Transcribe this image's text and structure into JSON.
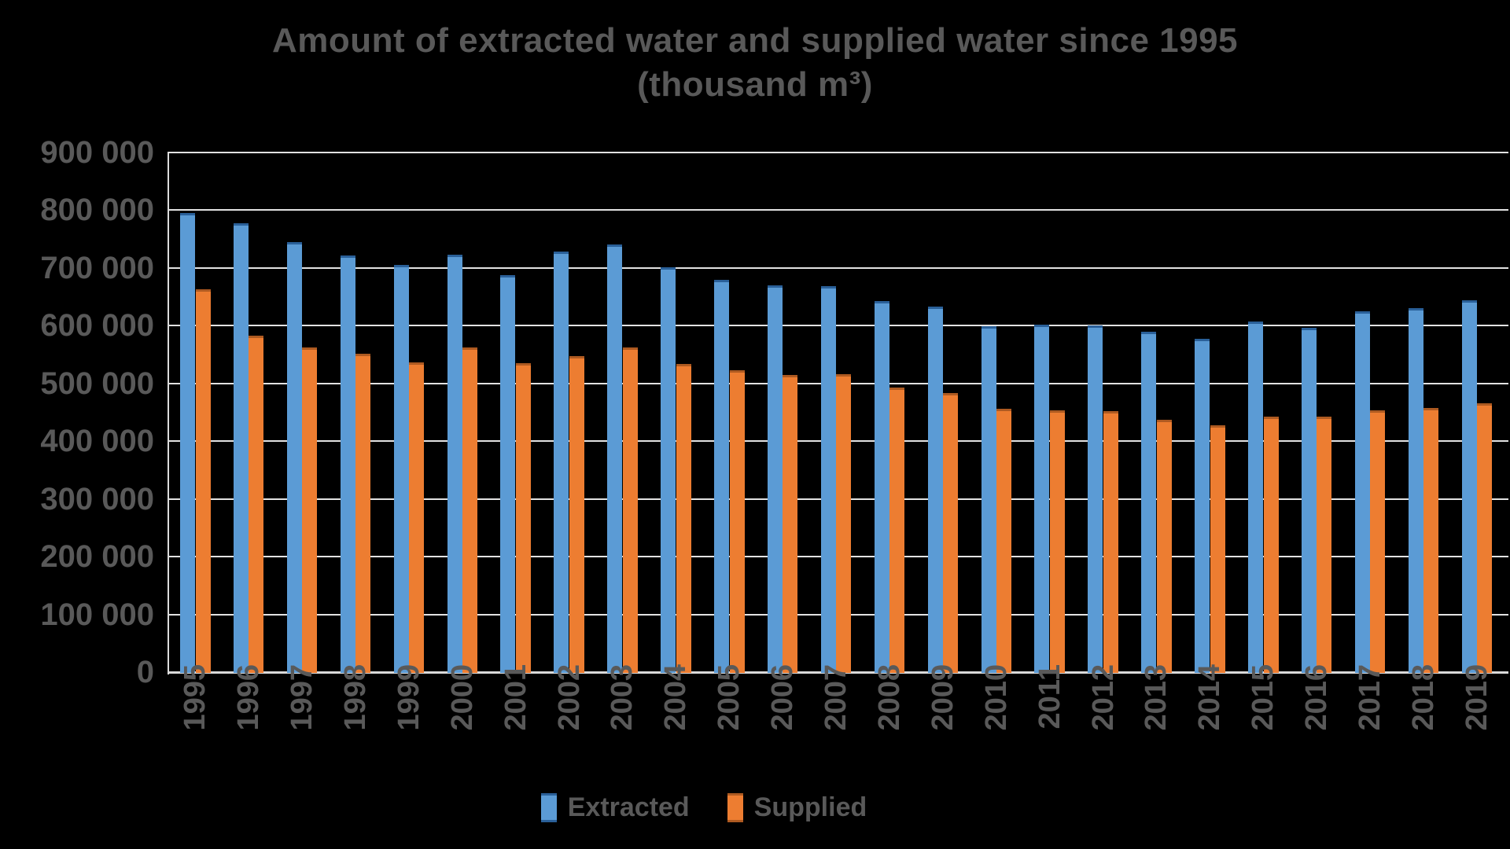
{
  "title_line1": "Amount of extracted water and supplied water since 1995",
  "title_line2": "(thousand m³)",
  "colors": {
    "extracted": "#5B9BD5",
    "extracted_cap": "#2A6099",
    "supplied": "#ED7D31",
    "supplied_cap": "#AE5A21",
    "text": "#595959",
    "gridline": "#E2E2E2",
    "axis": "#D9D9D9"
  },
  "legend": [
    {
      "label": "Extracted",
      "color": "#5B9BD5",
      "cap": "#2A6099"
    },
    {
      "label": "Supplied",
      "color": "#ED7D31",
      "cap": "#AE5A21"
    }
  ],
  "chart_data": {
    "type": "bar",
    "title": "Amount of extracted water and supplied water since 1995 (thousand m³)",
    "xlabel": "",
    "ylabel": "",
    "ylim": [
      0,
      900000
    ],
    "ytick_step": 100000,
    "grid": true,
    "legend_position": "bottom",
    "categories": [
      "1995",
      "1996",
      "1997",
      "1998",
      "1999",
      "2000",
      "2001",
      "2002",
      "2003",
      "2004",
      "2005",
      "2006",
      "2007",
      "2008",
      "2009",
      "2010",
      "2011",
      "2012",
      "2013",
      "2014",
      "2015",
      "2016",
      "2017",
      "2018",
      "2019"
    ],
    "series": [
      {
        "name": "Extracted",
        "color": "#5B9BD5",
        "values": [
          795000,
          777000,
          745000,
          722000,
          705000,
          723000,
          688000,
          729000,
          741000,
          701000,
          680000,
          670000,
          668000,
          643000,
          633000,
          599000,
          602000,
          600000,
          590000,
          577000,
          607000,
          597000,
          625000,
          630000,
          644000
        ]
      },
      {
        "name": "Supplied",
        "color": "#ED7D31",
        "values": [
          663000,
          583000,
          562000,
          551000,
          537000,
          562000,
          535000,
          548000,
          562000,
          534000,
          523000,
          514000,
          516000,
          493000,
          484000,
          456000,
          454000,
          452000,
          437000,
          428000,
          443000,
          443000,
          454000,
          457000,
          466000
        ]
      }
    ],
    "yticks": [
      {
        "value": 0,
        "label": "0"
      },
      {
        "value": 100000,
        "label": "100 000"
      },
      {
        "value": 200000,
        "label": "200 000"
      },
      {
        "value": 300000,
        "label": "300 000"
      },
      {
        "value": 400000,
        "label": "400 000"
      },
      {
        "value": 500000,
        "label": "500 000"
      },
      {
        "value": 600000,
        "label": "600 000"
      },
      {
        "value": 700000,
        "label": "700 000"
      },
      {
        "value": 800000,
        "label": "800 000"
      },
      {
        "value": 900000,
        "label": "900 000"
      }
    ]
  }
}
